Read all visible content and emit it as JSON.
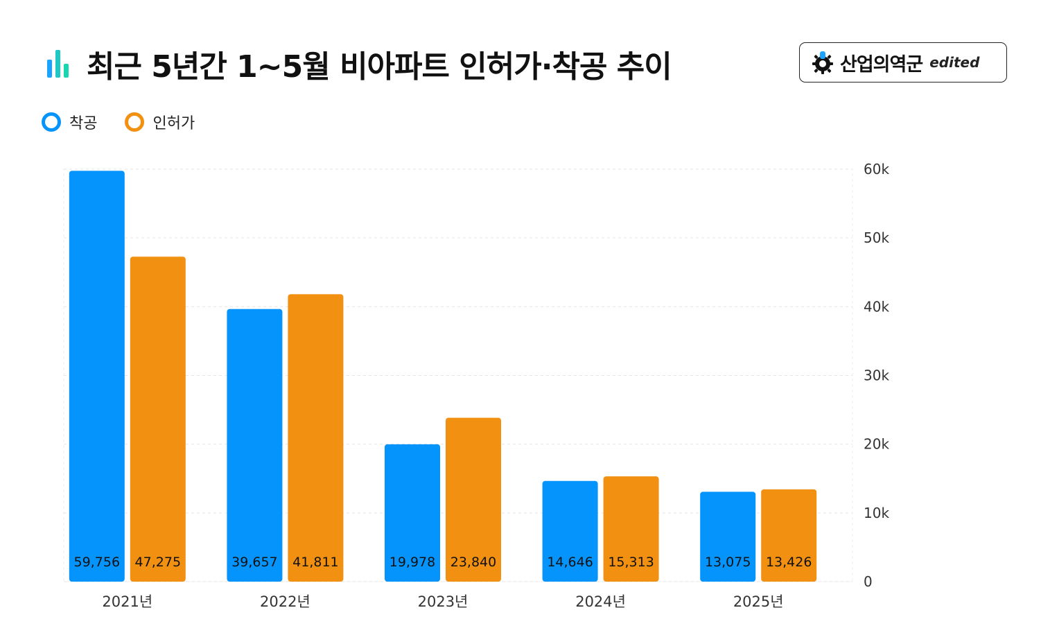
{
  "header": {
    "title": "최근 5년간 1~5월 비아파트 인허가·착공 추이"
  },
  "brand": {
    "name": "산업의역군",
    "tag": "edited"
  },
  "colors": {
    "series_1": "#0494fc",
    "series_2": "#f29111"
  },
  "chart_data": {
    "type": "bar",
    "categories": [
      "2021년",
      "2022년",
      "2023년",
      "2024년",
      "2025년"
    ],
    "series": [
      {
        "name": "착공",
        "values": [
          59756,
          39657,
          19978,
          14646,
          13075
        ],
        "labels": [
          "59,756",
          "39,657",
          "19,978",
          "14,646",
          "13,075"
        ]
      },
      {
        "name": "인허가",
        "values": [
          47275,
          41811,
          23840,
          15313,
          13426
        ],
        "labels": [
          "47,275",
          "41,811",
          "23,840",
          "15,313",
          "13,426"
        ]
      }
    ],
    "ylim": [
      0,
      60000
    ],
    "yticks": [
      0,
      10000,
      20000,
      30000,
      40000,
      50000,
      60000
    ],
    "ytick_labels": [
      "0",
      "10k",
      "20k",
      "30k",
      "40k",
      "50k",
      "60k"
    ],
    "y_axis_side": "right",
    "grid": true,
    "legend": "top-left"
  }
}
